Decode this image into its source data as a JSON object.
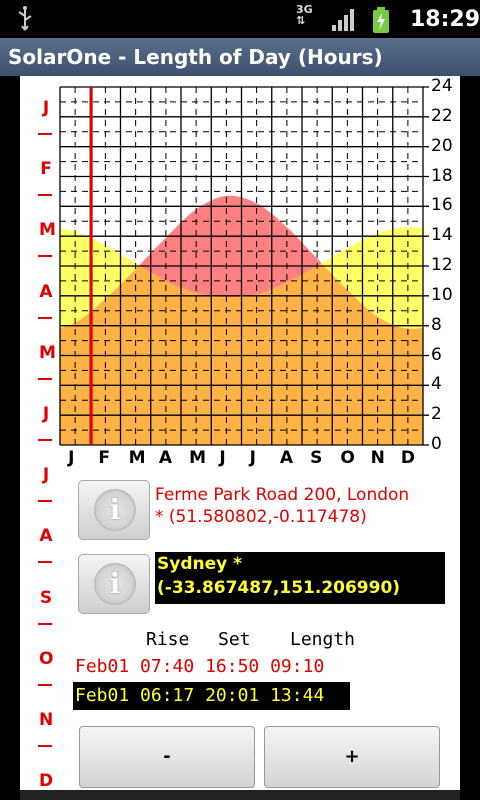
{
  "status_bar": {
    "network": "3G",
    "time": "18:29"
  },
  "window": {
    "title": "SolarOne - Length of Day (Hours)"
  },
  "side_months": [
    "J",
    "F",
    "M",
    "A",
    "M",
    "J",
    "J",
    "A",
    "S",
    "O",
    "N",
    "D"
  ],
  "chart_data": {
    "type": "area",
    "title": "",
    "x_categories": [
      "J",
      "F",
      "M",
      "A",
      "M",
      "J",
      "J",
      "A",
      "S",
      "O",
      "N",
      "D"
    ],
    "y_ticks": [
      0,
      2,
      4,
      6,
      8,
      10,
      12,
      14,
      16,
      18,
      20,
      22,
      24
    ],
    "ylim": [
      0,
      24
    ],
    "grid": true,
    "current_day_marker": "Feb01",
    "series": [
      {
        "name": "Ferme Park Road 200, London",
        "color": "#ff8080",
        "values": [
          8.2,
          9.8,
          11.8,
          13.9,
          15.8,
          16.7,
          16.2,
          14.6,
          12.5,
          10.4,
          8.6,
          7.8
        ]
      },
      {
        "name": "Sydney",
        "color": "#ffff66",
        "values": [
          14.3,
          13.4,
          12.2,
          11.0,
          10.2,
          9.9,
          10.1,
          10.9,
          12.0,
          13.2,
          14.2,
          14.6
        ]
      }
    ]
  },
  "location1": {
    "name": "Ferme Park Road 200, London",
    "coords": "* (51.580802,-0.117478)"
  },
  "location2": {
    "name": "Sydney *",
    "coords": "(-33.867487,151.206990)"
  },
  "table": {
    "headers": {
      "rise": "Rise",
      "set": "Set",
      "length": "Length"
    },
    "rows": [
      {
        "date": "Feb01",
        "rise": "07:40",
        "set": "16:50",
        "length": "09:10"
      },
      {
        "date": "Feb01",
        "rise": "06:17",
        "set": "20:01",
        "length": "13:44"
      }
    ]
  },
  "buttons": {
    "minus": "-",
    "plus": "+"
  },
  "info_icon_letter": "i"
}
